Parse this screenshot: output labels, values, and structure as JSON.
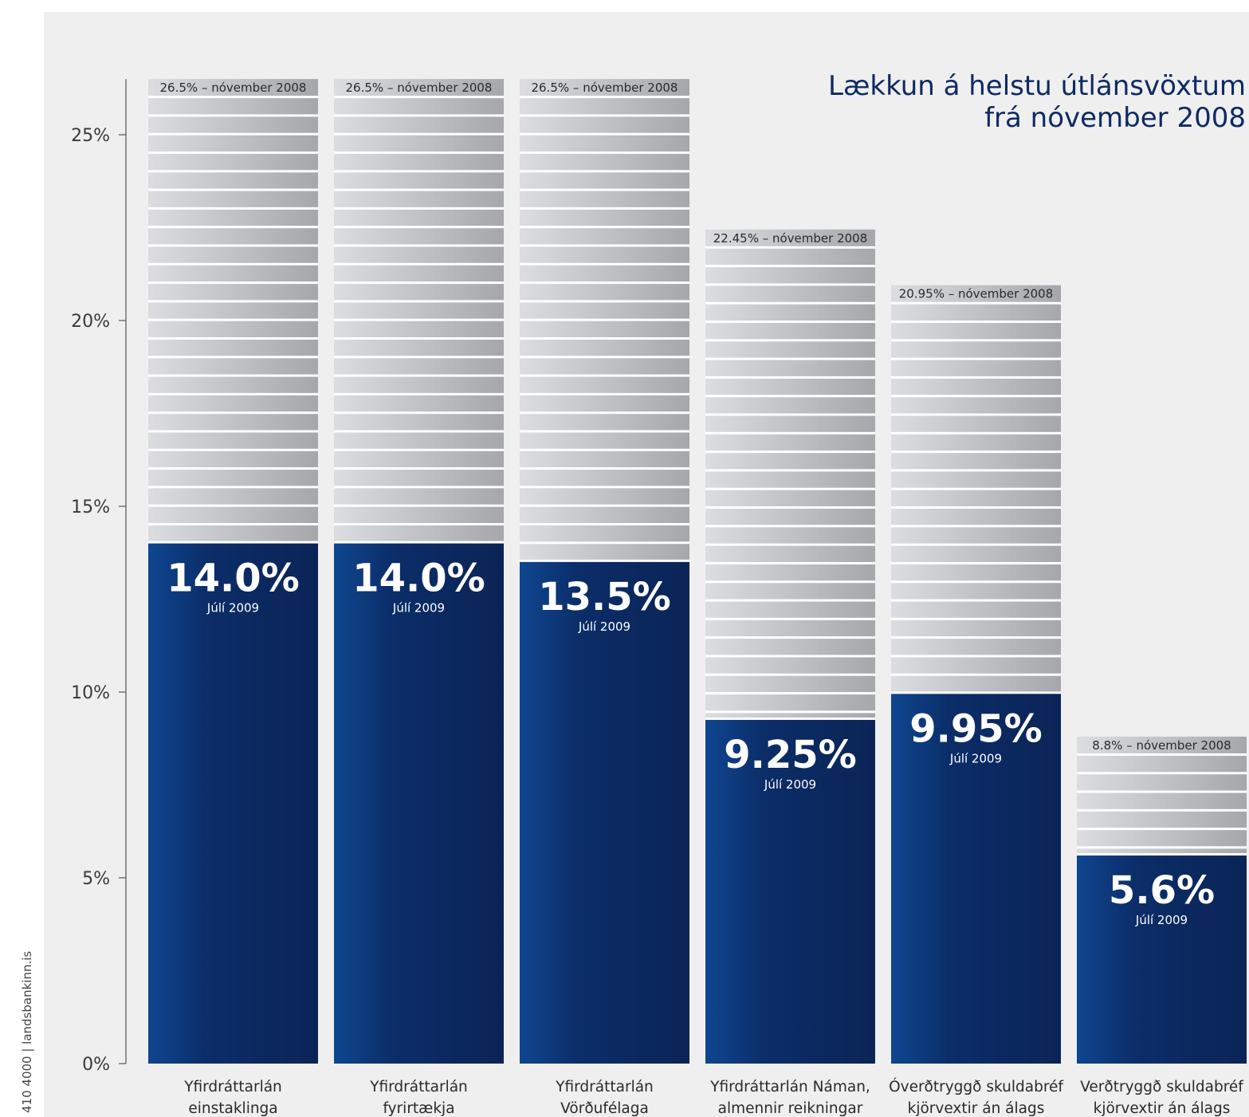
{
  "title_lines": [
    "Lækkun á helstu útlánsvöxtum",
    "frá nóvember 2008"
  ],
  "side_note": "410 4000  |  landsbankinn.is",
  "colors": {
    "background": "#efeff0",
    "current_bar_dark": "#0b2456",
    "current_bar_light": "#0f4690",
    "previous_bar_light": "#dcdde0",
    "previous_bar_dark": "#a5a7ab",
    "stripe": "#ffffff",
    "title": "#0d2a63"
  },
  "chart_data": {
    "type": "bar",
    "title": "Lækkun á helstu útlánsvöxtum frá nóvember 2008",
    "categories": [
      [
        "Yfirdráttarlán",
        "einstaklinga"
      ],
      [
        "Yfirdráttarlán",
        "fyrirtækja"
      ],
      [
        "Yfirdráttarlán",
        "Vörðufélaga"
      ],
      [
        "Yfirdráttarlán Náman,",
        "almennir reikningar"
      ],
      [
        "Óverðtryggð skuldabréf",
        "kjörvextir án álags"
      ],
      [
        "Verðtryggð skuldabréf",
        "kjörvextir án álags"
      ]
    ],
    "series": [
      {
        "name": "nóvember 2008",
        "values": [
          26.5,
          26.5,
          26.5,
          22.45,
          20.95,
          8.8
        ],
        "labels": [
          "26.5% – nóvember 2008",
          "26.5% – nóvember 2008",
          "26.5% – nóvember 2008",
          "22.45% – nóvember 2008",
          "20.95% – nóvember 2008",
          "8.8% – nóvember 2008"
        ]
      },
      {
        "name": "Júlí 2009",
        "values": [
          14.0,
          14.0,
          13.5,
          9.25,
          9.95,
          5.6
        ],
        "labels": [
          "14.0%",
          "14.0%",
          "13.5%",
          "9.25%",
          "9.95%",
          "5.6%"
        ]
      }
    ],
    "yticks": [
      0,
      5,
      10,
      15,
      20,
      25
    ],
    "ytick_labels": [
      "0%",
      "5%",
      "10%",
      "15%",
      "20%",
      "25%"
    ],
    "ylim": [
      0,
      26.5
    ],
    "grid": false,
    "legend": "none"
  }
}
